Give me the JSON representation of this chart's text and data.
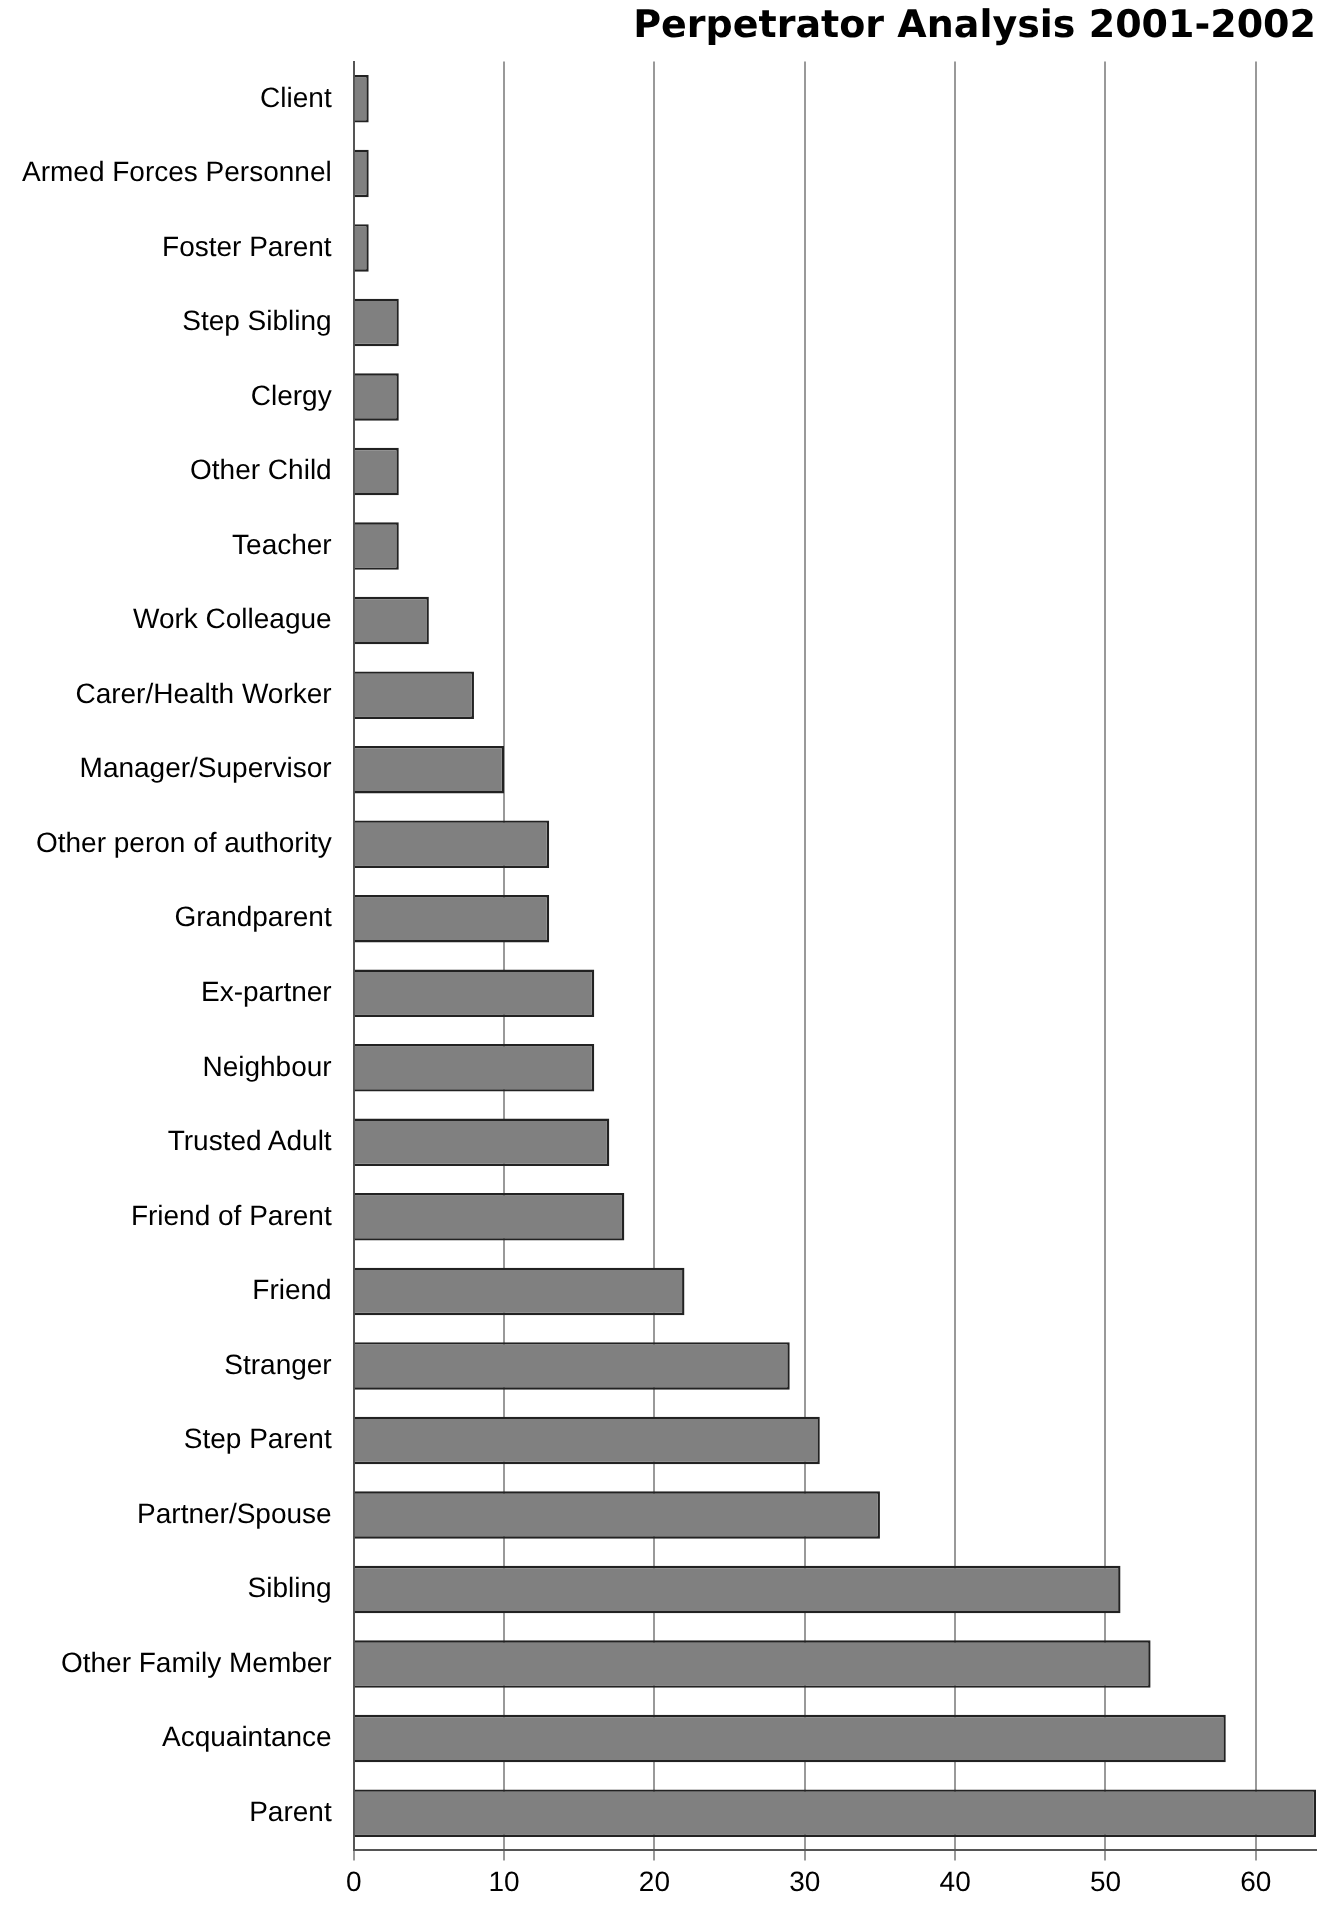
{
  "chart_data": {
    "type": "bar",
    "orientation": "horizontal",
    "title": "Perpetrator Analysis 2001-2002",
    "categories": [
      "Client",
      "Armed Forces Personnel",
      "Foster Parent",
      "Step Sibling",
      "Clergy",
      "Other Child",
      "Teacher",
      "Work Colleague",
      "Carer/Health Worker",
      "Manager/Supervisor",
      "Other peron of authority",
      "Grandparent",
      "Ex-partner",
      "Neighbour",
      "Trusted Adult",
      "Friend of Parent",
      "Friend",
      "Stranger",
      "Step Parent",
      "Partner/Spouse",
      "Sibling",
      "Other Family Member",
      "Acquaintance",
      "Parent"
    ],
    "values": [
      1,
      1,
      1,
      3,
      3,
      3,
      3,
      5,
      8,
      10,
      13,
      13,
      16,
      16,
      17,
      18,
      22,
      29,
      31,
      35,
      51,
      53,
      58,
      64
    ],
    "color": "#808080",
    "xlim": [
      0,
      64
    ],
    "xticks": [
      0,
      10,
      20,
      30,
      40,
      50,
      60
    ],
    "grid": "x",
    "legend": false
  }
}
